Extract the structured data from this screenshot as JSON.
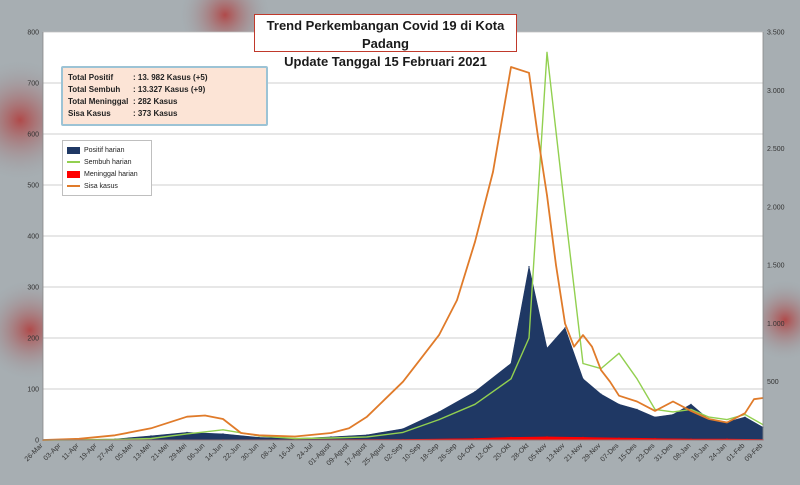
{
  "title_line1": "Trend Perkembangan Covid 19 di Kota Padang",
  "title_line2": "Update Tanggal  15 Februari 2021",
  "summary": [
    {
      "label": "Total Positif",
      "value": ": 13. 982 Kasus (+5)"
    },
    {
      "label": "Total Sembuh",
      "value": ": 13.327 Kasus (+9)"
    },
    {
      "label": "Total Meninggal",
      "value": ":       282 Kasus"
    },
    {
      "label": "Sisa Kasus",
      "value": ":       373 Kasus"
    }
  ],
  "colors": {
    "positif": "#1f3864",
    "sembuh": "#92d050",
    "meninggal": "#ff0000",
    "sisa": "#e07b2a"
  },
  "chart_data": {
    "type": "area",
    "x_ticks": [
      "26-Mar",
      "03-Apr",
      "11-Apr",
      "19-Apr",
      "27-Apr",
      "05-Mei",
      "13-Mei",
      "21-Mei",
      "29-Mei",
      "06-Jun",
      "14-Jun",
      "22-Jun",
      "30-Jun",
      "08-Jul",
      "16-Jul",
      "24-Jul",
      "01-Agust",
      "09-Agust",
      "17-Agust",
      "25-Agust",
      "02-Sep",
      "10-Sep",
      "18-Sep",
      "26-Sep",
      "04-Okt",
      "12-Okt",
      "20-Okt",
      "28-Okt",
      "05-Nov",
      "13-Nov",
      "21-Nov",
      "29-Nov",
      "07-Des",
      "15-Des",
      "23-Des",
      "31-Des",
      "08-Jan",
      "16-Jan",
      "24-Jan",
      "01-Feb",
      "09-Feb"
    ],
    "y_left_ticks": [
      "0",
      "100",
      "200",
      "300",
      "400",
      "500",
      "600",
      "700",
      "800"
    ],
    "y_right_ticks": [
      "",
      "500",
      "1.000",
      "1.500",
      "2.000",
      "2.500",
      "3.000",
      "3.500"
    ],
    "ylim_left": [
      0,
      800
    ],
    "ylim_right": [
      0,
      3500
    ],
    "grid": true,
    "legend_position": "top-left",
    "series": [
      {
        "name": "Positif harian",
        "axis": "left",
        "x_index": [
          0,
          4,
          6,
          8,
          10,
          12,
          14,
          16,
          18,
          20,
          22,
          24,
          26,
          27,
          28,
          29,
          30,
          31,
          32,
          33,
          34,
          35,
          36,
          37,
          38,
          39,
          40
        ],
        "values": [
          0,
          2,
          8,
          15,
          12,
          5,
          3,
          6,
          10,
          22,
          55,
          95,
          150,
          340,
          180,
          220,
          120,
          90,
          70,
          60,
          45,
          50,
          70,
          40,
          35,
          45,
          25
        ]
      },
      {
        "name": "Sembuh harian",
        "axis": "left",
        "x_index": [
          0,
          4,
          6,
          8,
          10,
          12,
          14,
          16,
          18,
          20,
          22,
          24,
          26,
          27,
          28,
          29,
          30,
          31,
          32,
          33,
          34,
          35,
          36,
          37,
          38,
          39,
          40
        ],
        "values": [
          0,
          1,
          3,
          12,
          20,
          8,
          3,
          4,
          6,
          15,
          40,
          70,
          120,
          200,
          760,
          450,
          150,
          140,
          170,
          120,
          60,
          55,
          60,
          45,
          40,
          50,
          30
        ]
      },
      {
        "name": "Meninggal harian",
        "axis": "left",
        "x_index": [
          0,
          10,
          20,
          24,
          26,
          28,
          30,
          32,
          34,
          36,
          38,
          40
        ],
        "values": [
          0,
          0,
          1,
          3,
          5,
          6,
          5,
          4,
          3,
          2,
          2,
          1
        ]
      },
      {
        "name": "Sisa kasus",
        "axis": "right",
        "x_index": [
          0,
          2,
          4,
          6,
          8,
          9,
          10,
          11,
          12,
          14,
          16,
          17,
          18,
          19,
          20,
          21,
          22,
          23,
          24,
          25,
          26,
          27,
          27.5,
          28,
          28.5,
          29,
          29.5,
          30,
          30.5,
          31,
          31.5,
          32,
          33,
          34,
          35,
          36,
          37,
          38,
          39,
          39.5,
          40
        ],
        "values": [
          0,
          10,
          40,
          100,
          200,
          210,
          180,
          60,
          40,
          30,
          60,
          100,
          200,
          350,
          500,
          700,
          900,
          1200,
          1700,
          2300,
          3200,
          3150,
          2600,
          2100,
          1500,
          1000,
          800,
          900,
          800,
          600,
          500,
          380,
          330,
          250,
          330,
          250,
          180,
          150,
          230,
          350,
          360
        ]
      }
    ]
  }
}
